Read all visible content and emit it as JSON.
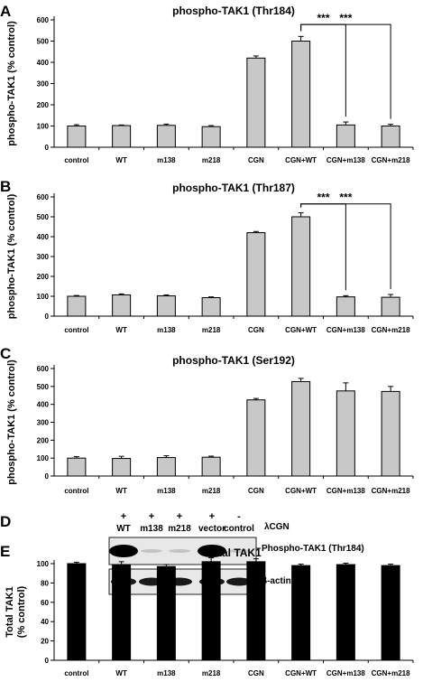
{
  "charts": [
    {
      "letter": "A",
      "chart_data": {
        "type": "bar",
        "title": "phospho-TAK1 (Thr184)",
        "ylabel": "phospho-TAK1 (% control)",
        "categories": [
          "control",
          "WT",
          "m138",
          "m218",
          "CGN",
          "CGN+WT",
          "CGN+m138",
          "CGN+m218"
        ],
        "values": [
          100,
          102,
          103,
          97,
          420,
          500,
          105,
          100
        ],
        "errors": [
          6,
          3,
          6,
          5,
          10,
          22,
          14,
          8
        ],
        "ylim": [
          0,
          600
        ],
        "yticks": [
          0,
          100,
          200,
          300,
          400,
          500,
          600
        ],
        "bar_color": "#c8c8c8",
        "significance": [
          {
            "from": 5,
            "to": 6,
            "label": "***",
            "y": 578
          },
          {
            "from": 5,
            "to": 7,
            "label": "***",
            "y": 578
          }
        ]
      }
    },
    {
      "letter": "B",
      "chart_data": {
        "type": "bar",
        "title": "phospho-TAK1 (Thr187)",
        "ylabel": "phospho-TAK1 (% control)",
        "categories": [
          "control",
          "WT",
          "m138",
          "m218",
          "CGN",
          "CGN+WT",
          "CGN+m138",
          "CGN+m218"
        ],
        "values": [
          100,
          107,
          102,
          93,
          420,
          500,
          97,
          95
        ],
        "errors": [
          4,
          5,
          5,
          4,
          6,
          20,
          6,
          14
        ],
        "ylim": [
          0,
          600
        ],
        "yticks": [
          0,
          100,
          200,
          300,
          400,
          500,
          600
        ],
        "bar_color": "#c8c8c8",
        "significance": [
          {
            "from": 5,
            "to": 6,
            "label": "***",
            "y": 565
          },
          {
            "from": 5,
            "to": 7,
            "label": "***",
            "y": 565
          }
        ]
      }
    },
    {
      "letter": "C",
      "chart_data": {
        "type": "bar",
        "title": "phospho-TAK1 (Ser192)",
        "ylabel": "phospho-TAK1 (% control)",
        "categories": [
          "control",
          "WT",
          "m138",
          "m218",
          "CGN",
          "CGN+WT",
          "CGN+m138",
          "CGN+m218"
        ],
        "values": [
          100,
          98,
          103,
          105,
          425,
          527,
          475,
          472
        ],
        "errors": [
          8,
          12,
          10,
          6,
          8,
          18,
          45,
          28
        ],
        "ylim": [
          0,
          600
        ],
        "yticks": [
          0,
          100,
          200,
          300,
          400,
          500,
          600
        ],
        "bar_color": "#c8c8c8",
        "significance": []
      }
    },
    {
      "letter": "E",
      "chart_data": {
        "type": "bar",
        "title": "Total TAK1",
        "ylabel": "Total TAK1 (% control)",
        "categories": [
          "control",
          "WT",
          "m138",
          "m218",
          "CGN",
          "CGN+WT",
          "CGN+m138",
          "CGN+m218"
        ],
        "values": [
          100,
          99,
          97,
          102,
          102,
          98,
          99,
          98
        ],
        "errors": [
          1.5,
          3,
          2,
          4,
          3,
          1.5,
          1.5,
          1.5
        ],
        "ylim": [
          0,
          100
        ],
        "yticks": [
          0,
          20,
          40,
          60,
          80,
          100
        ],
        "bar_color": "#000000",
        "significance": []
      }
    }
  ],
  "blot": {
    "letter": "D",
    "plus_minus": [
      "+",
      "+",
      "+",
      "+",
      "-"
    ],
    "lanes": [
      "WT",
      "m138",
      "m218",
      "vector",
      "control"
    ],
    "lambda_label": "λCGN",
    "band_labels": [
      "Phospho-TAK1 (Thr184)",
      "β-actin"
    ]
  }
}
